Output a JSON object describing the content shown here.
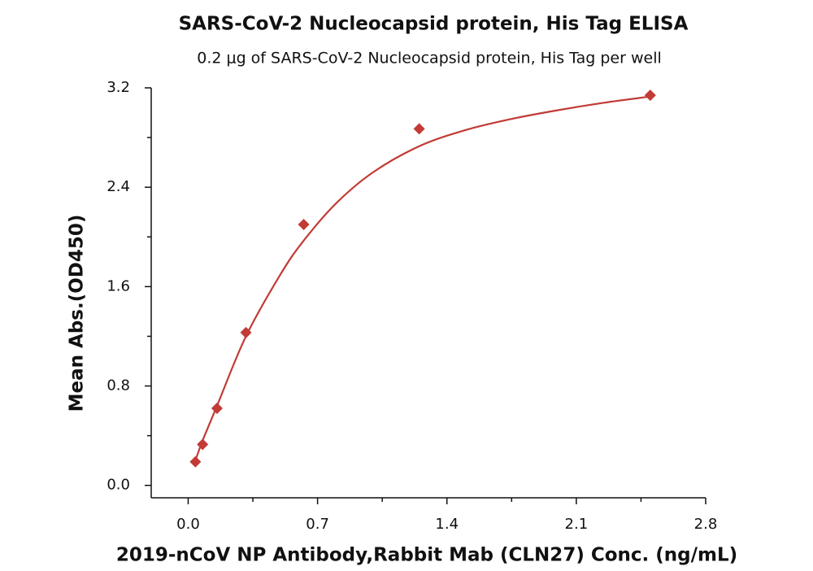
{
  "chart_data": {
    "type": "scatter",
    "title": "SARS-CoV-2 Nucleocapsid protein, His Tag ELISA",
    "subtitle": "0.2 μg of SARS-CoV-2 Nucleocapsid protein, His Tag per well",
    "x_label": "2019-nCoV NP Antibody,Rabbit Mab (CLN27)  Conc. (ng/mL)",
    "y_label": "Mean Abs.(OD450)",
    "color": "#c23b36",
    "x": [
      0.039,
      0.078,
      0.156,
      0.3125,
      0.625,
      1.25,
      2.5
    ],
    "values": [
      0.19,
      0.33,
      0.62,
      1.23,
      2.1,
      2.87,
      3.14
    ],
    "fit": {
      "x": [
        0.039,
        0.078,
        0.156,
        0.3125,
        0.5,
        0.625,
        0.8,
        1.0,
        1.25,
        1.5,
        1.75,
        2.0,
        2.25,
        2.5
      ],
      "values": [
        0.2,
        0.36,
        0.64,
        1.2,
        1.7,
        1.97,
        2.27,
        2.52,
        2.73,
        2.86,
        2.95,
        3.02,
        3.08,
        3.13
      ]
    },
    "xlim": [
      -0.2,
      2.8
    ],
    "ylim": [
      -0.1,
      3.2
    ],
    "xticks": [
      {
        "value": 0,
        "label": "0.0"
      },
      0.7,
      1.4,
      2.1,
      2.8
    ],
    "yticks": [
      {
        "value": 0,
        "label": "0.0"
      },
      0.8,
      1.6,
      2.4,
      3.2
    ],
    "xminor": [
      0.35,
      1.05,
      1.75,
      2.45
    ],
    "yminor": [
      0.4,
      1.2,
      2.0,
      2.8
    ]
  }
}
